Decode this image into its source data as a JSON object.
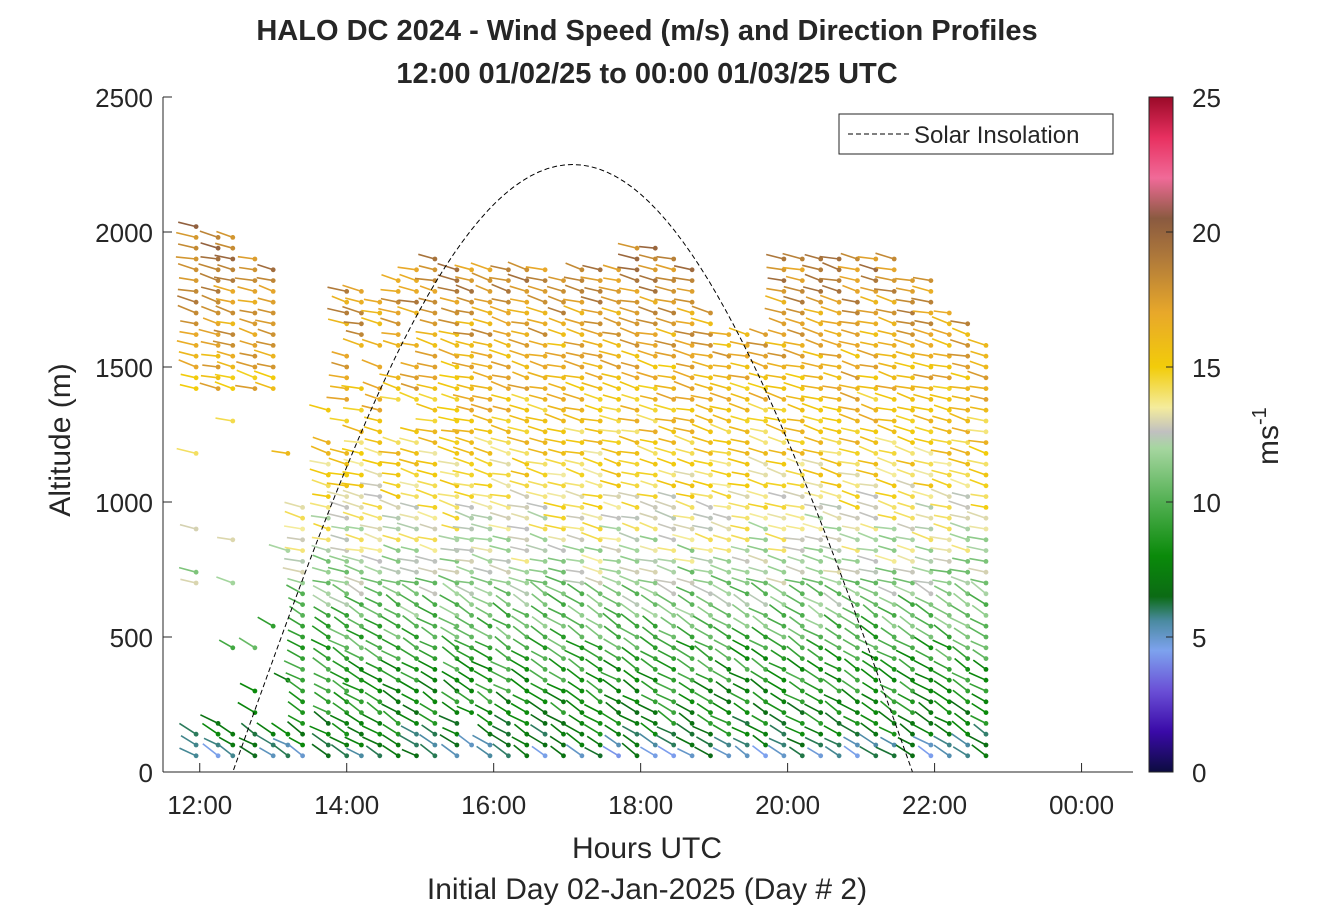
{
  "chart_data": {
    "type": "scatter",
    "title": "HALO DC 2024 - Wind Speed (m/s) and Direction Profiles",
    "subtitle": "12:00 01/02/25 to 00:00 01/03/25  UTC",
    "xlabel": "Hours UTC",
    "footnote": "Initial Day 02-Jan-2025 (Day # 2)",
    "ylabel": "Altitude (m)",
    "xlim": [
      11.5,
      24.7
    ],
    "ylim": [
      0,
      2500
    ],
    "x_ticks": [
      {
        "value": 12,
        "label": "12:00"
      },
      {
        "value": 14,
        "label": "14:00"
      },
      {
        "value": 16,
        "label": "16:00"
      },
      {
        "value": 18,
        "label": "18:00"
      },
      {
        "value": 20,
        "label": "20:00"
      },
      {
        "value": 22,
        "label": "22:00"
      },
      {
        "value": 24,
        "label": "00:00"
      }
    ],
    "y_ticks": [
      0,
      500,
      1000,
      1500,
      2000,
      2500
    ],
    "colorbar": {
      "label": "ms",
      "label_exponent": "-1",
      "range": [
        0,
        25
      ],
      "ticks": [
        0,
        5,
        10,
        15,
        20,
        25
      ],
      "colors": [
        {
          "v": 0,
          "c": "#0c0c40"
        },
        {
          "v": 1.5,
          "c": "#3a0aa8"
        },
        {
          "v": 3.0,
          "c": "#6a4fd6"
        },
        {
          "v": 4.5,
          "c": "#7da2ee"
        },
        {
          "v": 5.6,
          "c": "#4a8aa0"
        },
        {
          "v": 6.5,
          "c": "#0b6b14"
        },
        {
          "v": 8.0,
          "c": "#0a8a0a"
        },
        {
          "v": 10.0,
          "c": "#52b052"
        },
        {
          "v": 12.0,
          "c": "#a6d6a0"
        },
        {
          "v": 12.6,
          "c": "#c0c0c0"
        },
        {
          "v": 13.5,
          "c": "#f4ec9c"
        },
        {
          "v": 15.0,
          "c": "#f2cc0a"
        },
        {
          "v": 17.0,
          "c": "#e8a82a"
        },
        {
          "v": 19.0,
          "c": "#b07a3a"
        },
        {
          "v": 20.5,
          "c": "#8a5a40"
        },
        {
          "v": 22.0,
          "c": "#f06a98"
        },
        {
          "v": 23.5,
          "c": "#e83060"
        },
        {
          "v": 25,
          "c": "#9a0a28"
        }
      ]
    },
    "legend": {
      "entry": "Solar Insolation",
      "placement": "top-right"
    },
    "solar_insolation": {
      "start_hour": 12.45,
      "end_hour": 21.7,
      "peak_hour": 17.1,
      "peak_altitude": 2250
    },
    "profile_hours": [
      11.95,
      12.25,
      12.45,
      12.75,
      13.0,
      13.2,
      13.4,
      13.75,
      14.0,
      14.2,
      14.45,
      14.7,
      14.95,
      15.2,
      15.5,
      15.7,
      15.95,
      16.2,
      16.45,
      16.7,
      16.95,
      17.2,
      17.45,
      17.7,
      17.95,
      18.2,
      18.45,
      18.7,
      18.95,
      19.2,
      19.45,
      19.7,
      19.95,
      20.2,
      20.45,
      20.7,
      20.95,
      21.2,
      21.45,
      21.7,
      21.95,
      22.2,
      22.45,
      22.7
    ],
    "profile_tops": [
      2030,
      2010,
      1980,
      1900,
      1880,
      1380,
      1000,
      1500,
      1810,
      1780,
      1760,
      1850,
      1860,
      1900,
      1880,
      1860,
      1860,
      1860,
      1860,
      1860,
      1850,
      1860,
      1860,
      1880,
      1970,
      1950,
      1920,
      1880,
      1700,
      1640,
      1620,
      1650,
      1920,
      1920,
      1920,
      1920,
      1920,
      1920,
      1920,
      1840,
      1830,
      1700,
      1690,
      1610
    ],
    "level_spacing_m": 40,
    "speed_by_altitude": [
      {
        "alt": 0,
        "speed": 4.5
      },
      {
        "alt": 150,
        "speed": 7.5
      },
      {
        "alt": 400,
        "speed": 9.0
      },
      {
        "alt": 800,
        "speed": 12.5
      },
      {
        "alt": 1200,
        "speed": 15.0
      },
      {
        "alt": 1700,
        "speed": 17.5
      },
      {
        "alt": 2100,
        "speed": 19.5
      }
    ]
  }
}
